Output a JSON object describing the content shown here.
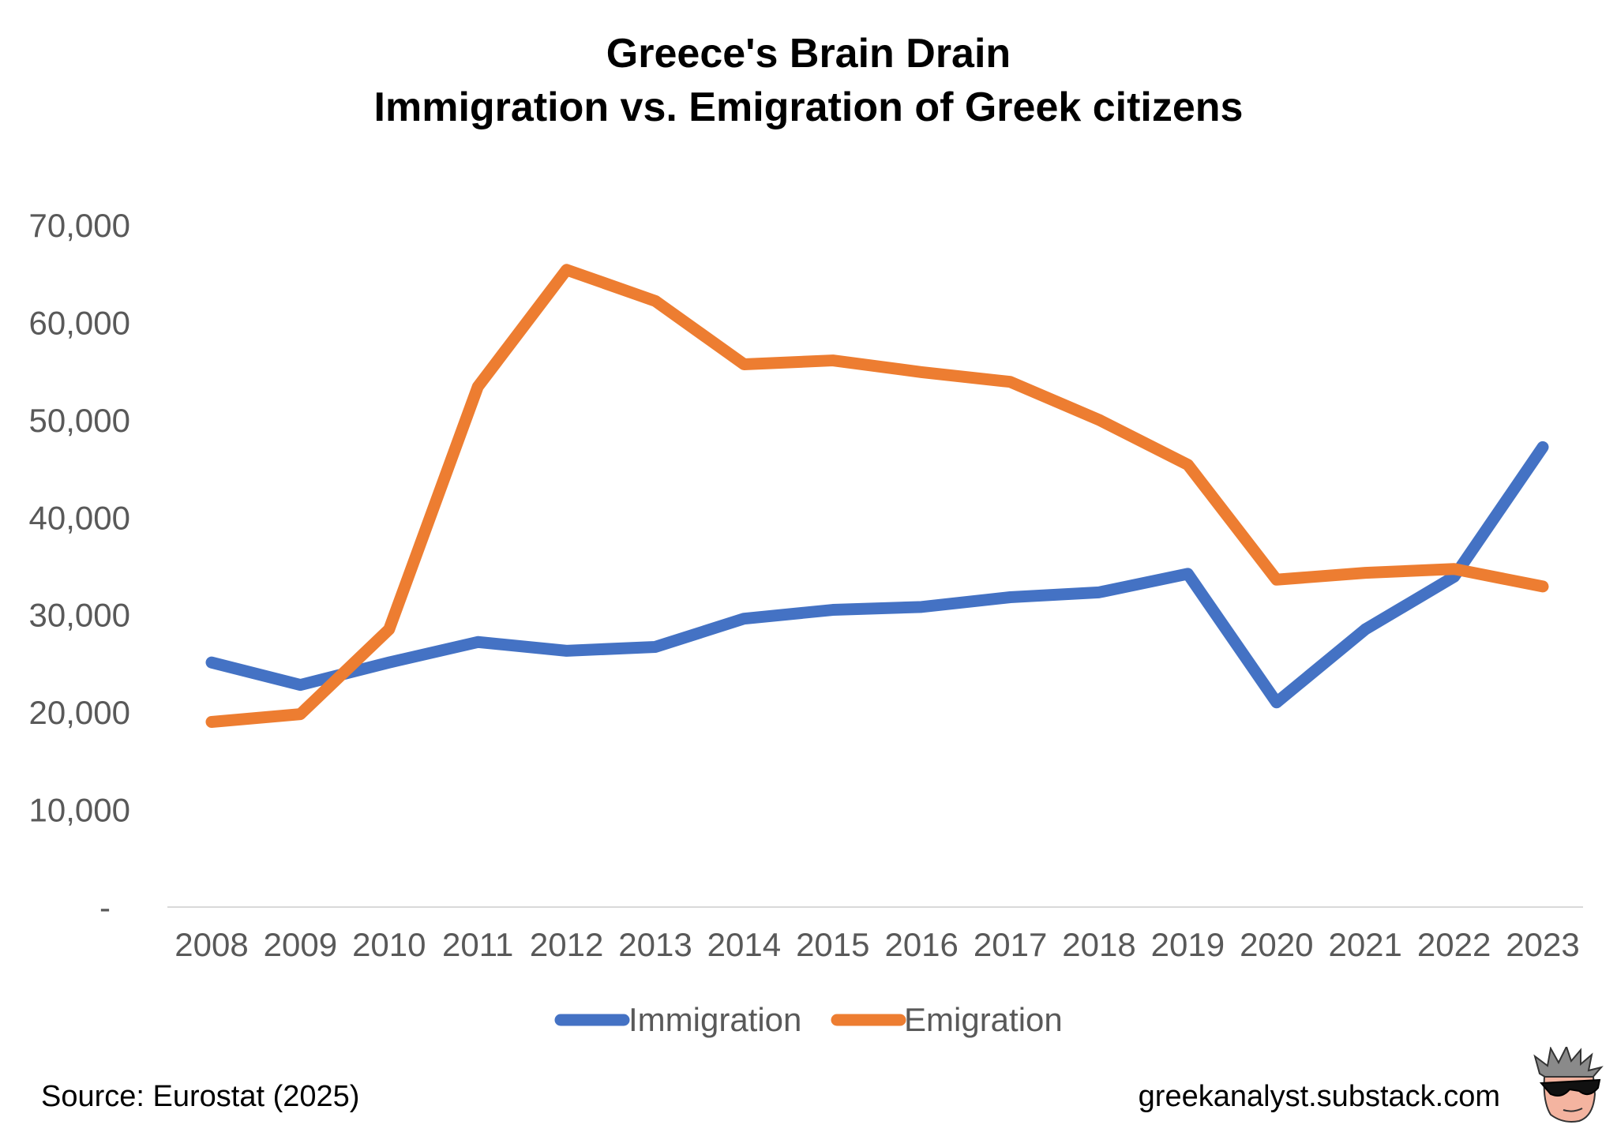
{
  "header": {
    "title_line1": "Greece's Brain Drain",
    "title_line2": "Immigration vs. Emigration of Greek citizens"
  },
  "footer": {
    "source": "Source: Eurostat (2025)",
    "site": "greekanalyst.substack.com",
    "logo_icon": "sunglasses-face-icon"
  },
  "chart_data": {
    "type": "line",
    "title": "Greece's Brain Drain\nImmigration vs. Emigration of Greek citizens",
    "xlabel": "",
    "ylabel": "",
    "x": [
      "2008",
      "2009",
      "2010",
      "2011",
      "2012",
      "2013",
      "2014",
      "2015",
      "2016",
      "2017",
      "2018",
      "2019",
      "2020",
      "2021",
      "2022",
      "2023"
    ],
    "ylim": [
      0,
      70000
    ],
    "yticks": [
      0,
      10000,
      20000,
      30000,
      40000,
      50000,
      60000,
      70000
    ],
    "ytick_labels": [
      "-",
      "10,000",
      "20,000",
      "30,000",
      "40,000",
      "50,000",
      "60,000",
      "70,000"
    ],
    "grid": false,
    "legend_position": "bottom",
    "series": [
      {
        "name": "Immigration",
        "color": "#4472C4",
        "values": [
          25100,
          22800,
          25100,
          27200,
          26300,
          26700,
          29600,
          30500,
          30800,
          31800,
          32300,
          34200,
          21000,
          28500,
          33900,
          47200
        ]
      },
      {
        "name": "Emigration",
        "color": "#ED7D31",
        "values": [
          19000,
          19800,
          28500,
          53400,
          65400,
          62200,
          55700,
          56100,
          54900,
          53900,
          50000,
          45400,
          33600,
          34300,
          34700,
          32900
        ]
      }
    ]
  }
}
